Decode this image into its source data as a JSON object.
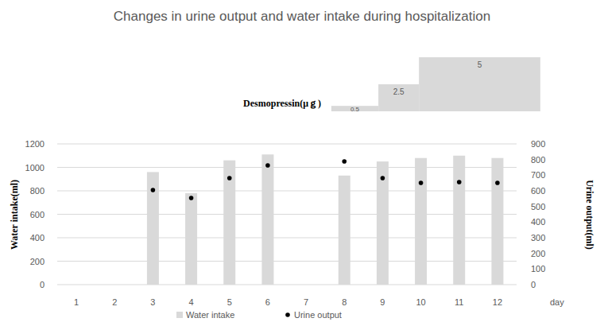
{
  "chart_data": [
    {
      "type": "bar",
      "title": "Changes in urine output and water intake during hospitalization",
      "categories": [
        "1",
        "2",
        "3",
        "4",
        "5",
        "6",
        "7",
        "8",
        "9",
        "10",
        "11",
        "12"
      ],
      "x_label": "day",
      "y_label": "Water intake(ml)",
      "y2_label": "Urine output(ml)",
      "series": [
        {
          "name": "Water intake",
          "type": "bar",
          "color": "#d9d9d9",
          "values": [
            null,
            null,
            960,
            780,
            1060,
            1110,
            null,
            930,
            1050,
            1080,
            1100,
            1080
          ]
        },
        {
          "name": "Urine output",
          "type": "scatter",
          "color": "#000000",
          "marker": "circle",
          "axis": "y2",
          "values": [
            null,
            null,
            605,
            554,
            681,
            763,
            null,
            788,
            681,
            651,
            656,
            651
          ]
        }
      ],
      "ylim": [
        0,
        1200
      ],
      "yticks": [
        0,
        200,
        400,
        600,
        800,
        1000,
        1200
      ],
      "y2lim": [
        0,
        900
      ],
      "y2ticks": [
        0,
        100,
        200,
        300,
        400,
        500,
        600,
        700,
        800,
        900
      ],
      "grid": true,
      "legend": "bottom"
    },
    {
      "type": "step",
      "title": "Desmopressin(μｇ)",
      "bins": [
        7.66,
        8.89,
        9.95,
        13.12
      ],
      "values": [
        0.5,
        2.5,
        5
      ],
      "color": "#d9d9d9",
      "ylim": [
        0,
        5
      ],
      "data_labels": true,
      "tick_labels": false
    }
  ]
}
